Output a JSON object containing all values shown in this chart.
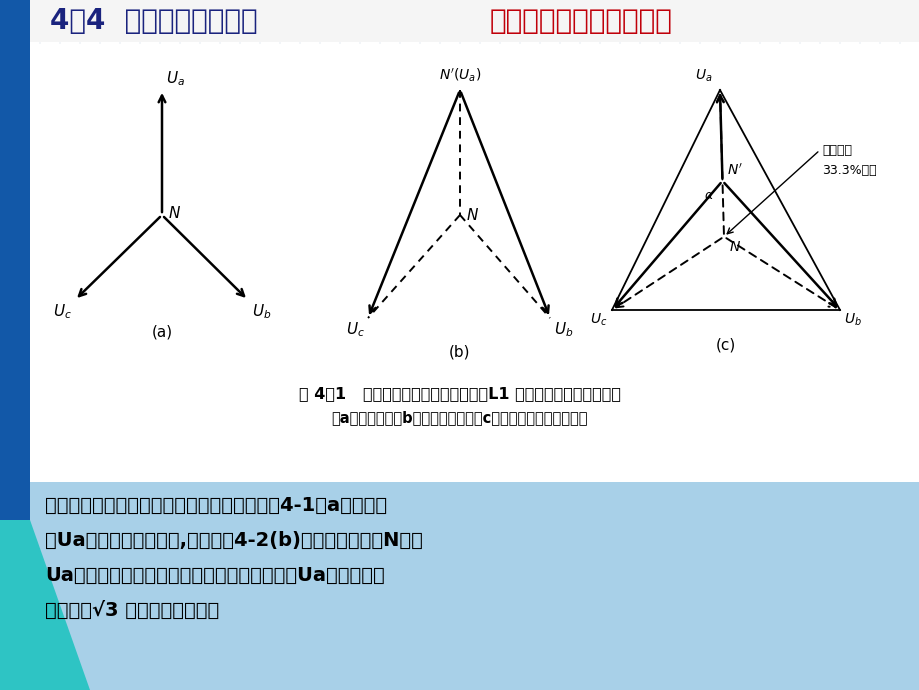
{
  "title_left": "4－4  系统接地事故处理",
  "title_right": "小电流接地系统单相接地",
  "title_left_color": "#1a237e",
  "title_right_color": "#c0000a",
  "title_fontsize": 20,
  "bg_color_white": "#ffffff",
  "bg_color_bottom": "#a8cfe8",
  "grid_color": "#c8d8e8",
  "sidebar_color": "#1565c0",
  "caption_line1": "图 4－1   一相接地时中性点偏移轨迹（L1 相接地）及各相对地电压",
  "caption_line2": "（a）正常时；（b）金属性接地；（c）接地时中性点位移轨迹",
  "text_line1": "系统正常运行时，三相电压平衡，相量图如图4-1（a）所示。",
  "text_line2": "当Ua相为金属性接地时,相量图如4-2(b)所示，中性点自N移至",
  "text_line3": "Ua，故障相电压为零，中性点电压由零变为－Ua，非故障相",
  "text_line4": "电压上升√3 倍，为线电压值。",
  "label_weiyi": "位移轨迹",
  "label_33": "33.3%接地",
  "label_a": "(a)",
  "label_b": "(b)",
  "label_c": "(c)"
}
